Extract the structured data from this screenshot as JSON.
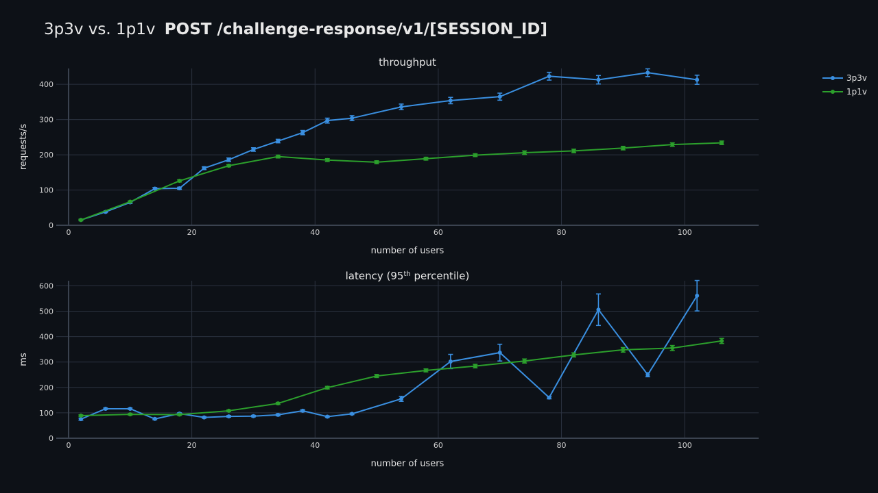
{
  "title": {
    "prefix": "3p3v vs. 1p1v",
    "endpoint": "POST /challenge-response/v1/[SESSION_ID]"
  },
  "legend": [
    {
      "name": "3p3v",
      "color": "#3a8fe0"
    },
    {
      "name": "1p1v",
      "color": "#2ca02c"
    }
  ],
  "chart_data": [
    {
      "type": "line",
      "title": "throughput",
      "xlabel": "number of users",
      "ylabel": "requests/s",
      "xlim": [
        -2,
        112
      ],
      "ylim": [
        0,
        445
      ],
      "xticks": [
        0,
        20,
        40,
        60,
        80,
        100
      ],
      "yticks": [
        0,
        100,
        200,
        300,
        400
      ],
      "grid": true,
      "legend_position": "top-right",
      "series": [
        {
          "name": "3p3v",
          "x": [
            2,
            6,
            10,
            14,
            18,
            22,
            26,
            30,
            34,
            38,
            42,
            46,
            54,
            62,
            70,
            78,
            86,
            94,
            102
          ],
          "y": [
            15,
            38,
            65,
            104,
            105,
            162,
            186,
            215,
            239,
            263,
            297,
            304,
            336,
            354,
            365,
            423,
            413,
            433,
            413
          ],
          "error": [
            2,
            2,
            3,
            3,
            3,
            4,
            5,
            5,
            5,
            6,
            7,
            7,
            8,
            9,
            10,
            11,
            12,
            11,
            13
          ]
        },
        {
          "name": "1p1v",
          "x": [
            2,
            10,
            18,
            26,
            34,
            42,
            50,
            58,
            66,
            74,
            82,
            90,
            98,
            106
          ],
          "y": [
            15,
            67,
            126,
            169,
            195,
            185,
            179,
            189,
            199,
            206,
            211,
            219,
            229,
            234
          ],
          "error": [
            2,
            2,
            3,
            3,
            4,
            4,
            4,
            4,
            4,
            5,
            5,
            5,
            5,
            5
          ]
        }
      ]
    },
    {
      "type": "line",
      "title": "latency (95",
      "title_sup": "th",
      "title_suffix": " percentile)",
      "xlabel": "number of users",
      "ylabel": "ms",
      "xlim": [
        -2,
        112
      ],
      "ylim": [
        0,
        620
      ],
      "xticks": [
        0,
        20,
        40,
        60,
        80,
        100
      ],
      "yticks": [
        0,
        100,
        200,
        300,
        400,
        500,
        600
      ],
      "grid": true,
      "series": [
        {
          "name": "3p3v",
          "x": [
            2,
            6,
            10,
            14,
            18,
            22,
            26,
            30,
            34,
            38,
            42,
            46,
            54,
            62,
            70,
            78,
            86,
            94,
            102
          ],
          "y": [
            75,
            116,
            116,
            76,
            97,
            82,
            86,
            87,
            92,
            108,
            85,
            96,
            155,
            302,
            337,
            160,
            506,
            250,
            561
          ],
          "error": [
            4,
            3,
            3,
            3,
            3,
            3,
            3,
            3,
            4,
            4,
            3,
            3,
            10,
            28,
            33,
            5,
            62,
            8,
            60
          ]
        },
        {
          "name": "1p1v",
          "x": [
            2,
            10,
            18,
            26,
            34,
            42,
            50,
            58,
            66,
            74,
            82,
            90,
            98,
            106
          ],
          "y": [
            89,
            94,
            93,
            108,
            137,
            199,
            245,
            267,
            284,
            304,
            328,
            348,
            355,
            383
          ],
          "error": [
            3,
            3,
            3,
            3,
            4,
            5,
            6,
            6,
            7,
            8,
            8,
            9,
            10,
            10
          ]
        }
      ]
    }
  ]
}
